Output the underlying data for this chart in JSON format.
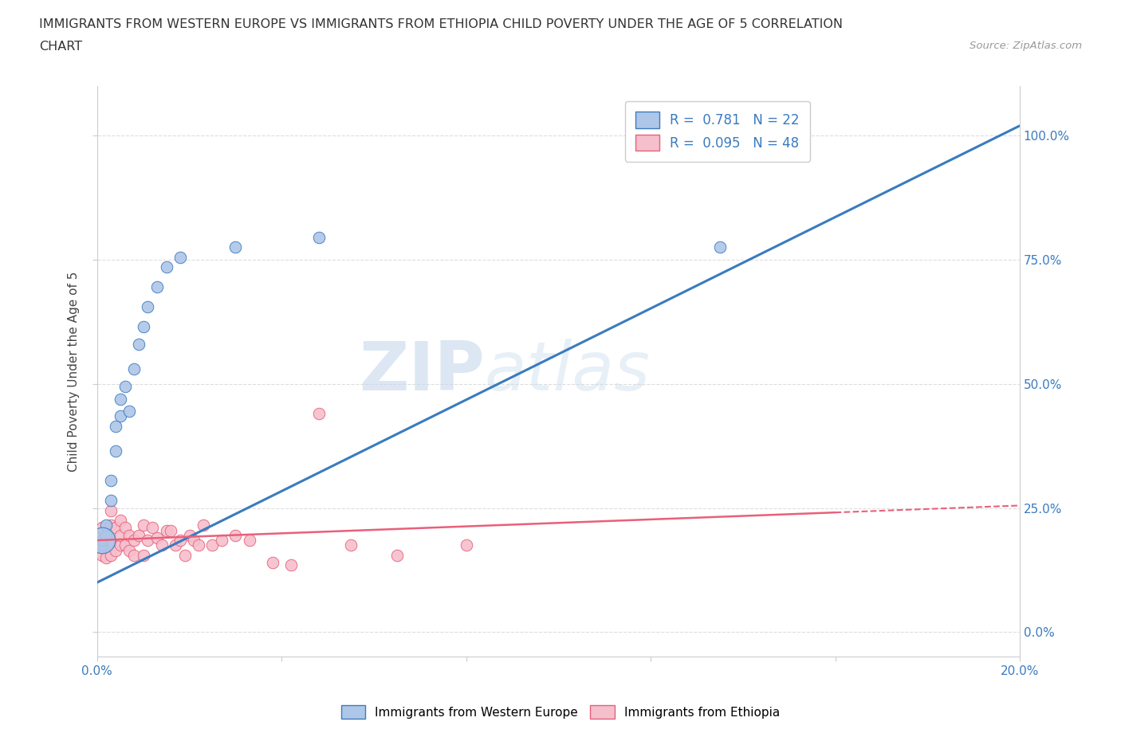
{
  "title_line1": "IMMIGRANTS FROM WESTERN EUROPE VS IMMIGRANTS FROM ETHIOPIA CHILD POVERTY UNDER THE AGE OF 5 CORRELATION",
  "title_line2": "CHART",
  "source_text": "Source: ZipAtlas.com",
  "ylabel": "Child Poverty Under the Age of 5",
  "xlim": [
    0.0,
    0.2
  ],
  "ylim": [
    -0.05,
    1.1
  ],
  "ytick_values": [
    0.0,
    0.25,
    0.5,
    0.75,
    1.0
  ],
  "xtick_values": [
    0.0,
    0.04,
    0.08,
    0.12,
    0.16,
    0.2
  ],
  "background_color": "#ffffff",
  "watermark_zip": "ZIP",
  "watermark_atlas": "atlas",
  "legend1_label": "R =  0.781   N = 22",
  "legend2_label": "R =  0.095   N = 48",
  "legend1_color": "#aec6e8",
  "legend2_color": "#f5bfcc",
  "line1_color": "#3a7bbf",
  "line2_color": "#e8607a",
  "scatter1_color": "#aec6e8",
  "scatter2_color": "#f5bfcc",
  "scatter1_edge": "#3a7bbf",
  "scatter2_edge": "#e8607a",
  "tick_color": "#3a7bbf",
  "grid_color": "#dddddd",
  "we_x": [
    0.001,
    0.001,
    0.002,
    0.002,
    0.003,
    0.003,
    0.004,
    0.004,
    0.005,
    0.005,
    0.006,
    0.007,
    0.008,
    0.009,
    0.01,
    0.011,
    0.013,
    0.015,
    0.018,
    0.03,
    0.048,
    0.135
  ],
  "we_y": [
    0.175,
    0.185,
    0.195,
    0.215,
    0.265,
    0.305,
    0.365,
    0.415,
    0.435,
    0.47,
    0.495,
    0.445,
    0.53,
    0.58,
    0.615,
    0.655,
    0.695,
    0.735,
    0.755,
    0.775,
    0.795,
    0.775
  ],
  "we_large_x": [
    0.001
  ],
  "we_large_y": [
    0.185
  ],
  "eth_x": [
    0.001,
    0.001,
    0.001,
    0.001,
    0.002,
    0.002,
    0.002,
    0.003,
    0.003,
    0.003,
    0.003,
    0.004,
    0.004,
    0.005,
    0.005,
    0.005,
    0.006,
    0.006,
    0.007,
    0.007,
    0.008,
    0.008,
    0.009,
    0.01,
    0.01,
    0.011,
    0.012,
    0.013,
    0.014,
    0.015,
    0.016,
    0.017,
    0.018,
    0.019,
    0.02,
    0.021,
    0.022,
    0.023,
    0.025,
    0.027,
    0.03,
    0.033,
    0.038,
    0.042,
    0.048,
    0.055,
    0.065,
    0.08
  ],
  "eth_y": [
    0.155,
    0.18,
    0.195,
    0.21,
    0.15,
    0.175,
    0.195,
    0.155,
    0.18,
    0.215,
    0.245,
    0.165,
    0.21,
    0.175,
    0.195,
    0.225,
    0.175,
    0.21,
    0.165,
    0.195,
    0.155,
    0.185,
    0.195,
    0.155,
    0.215,
    0.185,
    0.21,
    0.19,
    0.175,
    0.205,
    0.205,
    0.175,
    0.185,
    0.155,
    0.195,
    0.185,
    0.175,
    0.215,
    0.175,
    0.185,
    0.195,
    0.185,
    0.14,
    0.135,
    0.44,
    0.175,
    0.155,
    0.175
  ],
  "line1_x": [
    0.0,
    0.2
  ],
  "line1_y": [
    0.1,
    1.02
  ],
  "line2_x": [
    0.0,
    0.2
  ],
  "line2_y": [
    0.185,
    0.255
  ]
}
